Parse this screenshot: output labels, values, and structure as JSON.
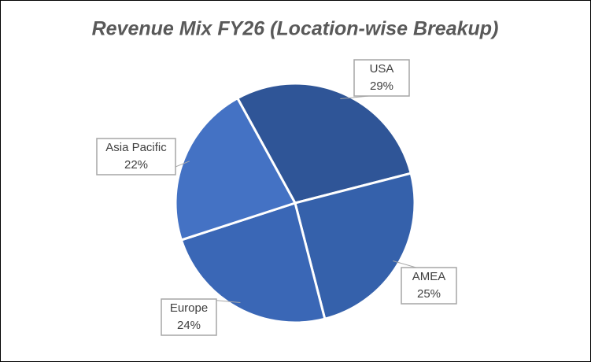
{
  "chart_data": {
    "type": "pie",
    "title": "Revenue Mix FY26 (Location-wise Breakup)",
    "categories": [
      "USA",
      "AMEA",
      "Europe",
      "Asia Pacific"
    ],
    "values": [
      29,
      25,
      24,
      22
    ],
    "value_labels": [
      "29%",
      "25%",
      "24%",
      "22%"
    ],
    "colors": [
      "#2f5597",
      "#3561ab",
      "#3a67b6",
      "#4472c4"
    ]
  }
}
